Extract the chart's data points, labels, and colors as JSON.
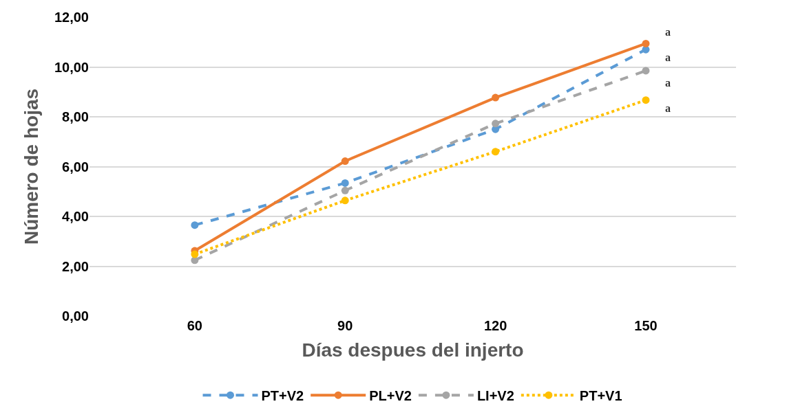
{
  "chart_data": {
    "type": "line",
    "xlabel": "Días despues del injerto",
    "ylabel": "Número de hojas",
    "categories": [
      "60",
      "90",
      "120",
      "150"
    ],
    "series": [
      {
        "name": "PT+V2",
        "color": "#5b9bd5",
        "line_style": "dashed",
        "values": [
          3.65,
          5.34,
          7.5,
          10.7
        ]
      },
      {
        "name": "PL+V2",
        "color": "#ed7d31",
        "line_style": "solid",
        "values": [
          2.62,
          6.22,
          8.77,
          10.94
        ]
      },
      {
        "name": "LI+V2",
        "color": "#a5a5a5",
        "line_style": "dashed",
        "values": [
          2.24,
          5.04,
          7.73,
          9.85
        ]
      },
      {
        "name": "PT+V1",
        "color": "#ffc000",
        "line_style": "dotted",
        "values": [
          2.48,
          4.64,
          6.6,
          8.67
        ]
      }
    ],
    "ylim": [
      0,
      12
    ],
    "yticks": [
      {
        "value": 0,
        "label": "0,00"
      },
      {
        "value": 2,
        "label": "2,00"
      },
      {
        "value": 4,
        "label": "4,00"
      },
      {
        "value": 6,
        "label": "6,00"
      },
      {
        "value": 8,
        "label": "8,00"
      },
      {
        "value": 10,
        "label": "10,00"
      },
      {
        "value": 12,
        "label": "12,00"
      }
    ],
    "annotations": [
      "a",
      "a",
      "a",
      "a"
    ],
    "grid": "y",
    "legend": "bottom",
    "marker": "circle"
  }
}
